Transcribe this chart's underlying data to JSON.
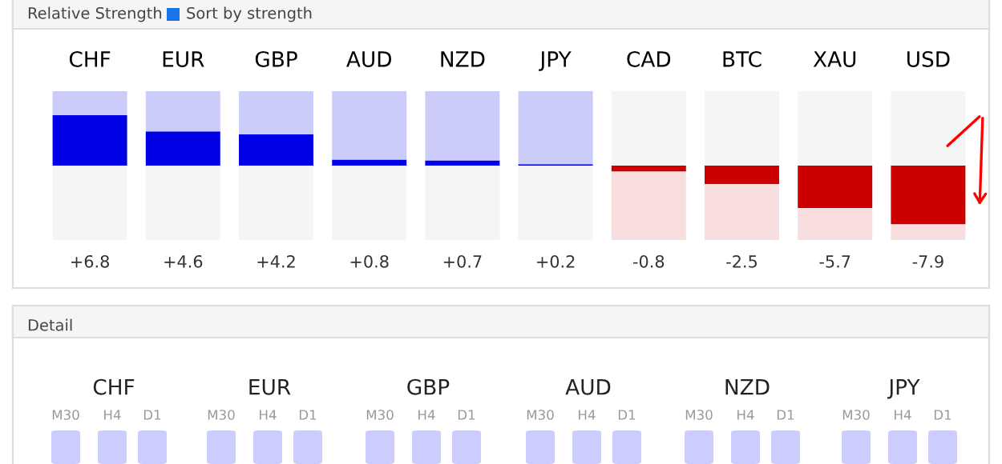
{
  "chart_data": [
    {
      "type": "bar",
      "title": "Relative Strength",
      "annotations": [
        "Sort by strength"
      ],
      "categories": [
        "CHF",
        "EUR",
        "GBP",
        "AUD",
        "NZD",
        "JPY",
        "CAD",
        "BTC",
        "XAU",
        "USD"
      ],
      "stacked": true,
      "series": [
        {
          "colors": [
            "#0000e6",
            "#0000e6",
            "#0000e6",
            "#0000e6",
            "#0000e6",
            "#0000e6",
            "#cc0000",
            "#cc0000",
            "#cc0000",
            "#cc0000"
          ],
          "values": [
            6.8,
            4.6,
            4.2,
            0.8,
            0.7,
            0.2,
            -0.8,
            -2.5,
            -5.7,
            -7.9
          ],
          "value_labels": [
            "+6.8",
            "+4.6",
            "+4.2",
            "+0.8",
            "+0.7",
            "+0.2",
            "-0.8",
            "-2.5",
            "-5.7",
            "-7.9"
          ]
        },
        {
          "colors": [
            "#ccccfa",
            "#ccccfa",
            "#ccccfa",
            "#ccccfa",
            "#ccccfa",
            "#ccccfa",
            "#f8dede",
            "#f8dede",
            "#f8dede",
            "#f8dede"
          ],
          "values": [
            3.2,
            5.4,
            5.8,
            9.2,
            9.3,
            9.8,
            -9.2,
            -7.5,
            -4.3,
            -2.1
          ]
        },
        {
          "colors": [
            "#f5f5f5",
            "#f5f5f5",
            "#f5f5f5",
            "#f5f5f5",
            "#f5f5f5",
            "#f5f5f5",
            "#f5f5f5",
            "#f5f5f5",
            "#f5f5f5",
            "#f5f5f5"
          ],
          "values": [
            -10,
            -10,
            -10,
            -10,
            -10,
            -10,
            10,
            10,
            10,
            10
          ]
        }
      ],
      "ylim": [
        -10,
        10
      ],
      "grid": false,
      "legend": false
    },
    {
      "type": "other",
      "title": "Detail",
      "categories": [
        "CHF",
        "EUR",
        "GBP",
        "AUD",
        "NZD",
        "JPY"
      ],
      "annotations": [
        "M30",
        "H4",
        "D1"
      ]
    }
  ]
}
